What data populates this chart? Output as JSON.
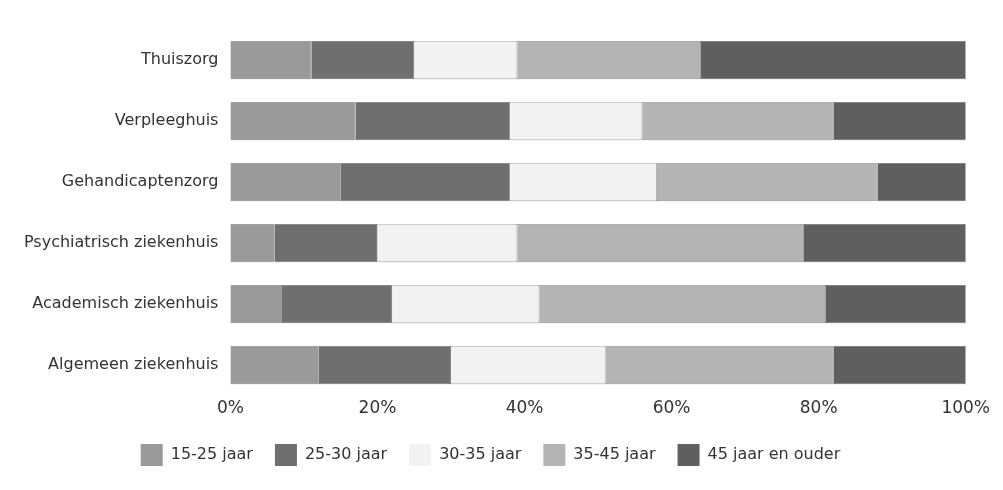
{
  "chart_data": {
    "type": "bar",
    "orientation": "horizontal",
    "stacked": true,
    "categories": [
      "Thuiszorg",
      "Verpleeghuis",
      "Gehandicaptenzorg",
      "Psychiatrisch ziekenhuis",
      "Academisch ziekenhuis",
      "Algemeen ziekenhuis"
    ],
    "series": [
      {
        "name": "15-25 jaar",
        "color": "#9a9a9a",
        "values": [
          11,
          17,
          15,
          6,
          7,
          12
        ]
      },
      {
        "name": "25-30 jaar",
        "color": "#6f6f6f",
        "values": [
          14,
          21,
          23,
          14,
          15,
          18
        ]
      },
      {
        "name": "30-35 jaar",
        "color": "#f2f2f2",
        "values": [
          14,
          18,
          20,
          19,
          20,
          21
        ]
      },
      {
        "name": "35-45 jaar",
        "color": "#b4b4b4",
        "values": [
          25,
          26,
          30,
          39,
          39,
          31
        ]
      },
      {
        "name": "45 jaar en ouder",
        "color": "#5f5f5f",
        "values": [
          36,
          18,
          12,
          22,
          19,
          18
        ]
      }
    ],
    "xlim": [
      0,
      100
    ],
    "xticks": [
      {
        "value": 0,
        "label": "0%"
      },
      {
        "value": 20,
        "label": "20%"
      },
      {
        "value": 40,
        "label": "40%"
      },
      {
        "value": 60,
        "label": "60%"
      },
      {
        "value": 80,
        "label": "80%"
      },
      {
        "value": 100,
        "label": "100%"
      }
    ],
    "grid": false,
    "legend": "bottom"
  }
}
